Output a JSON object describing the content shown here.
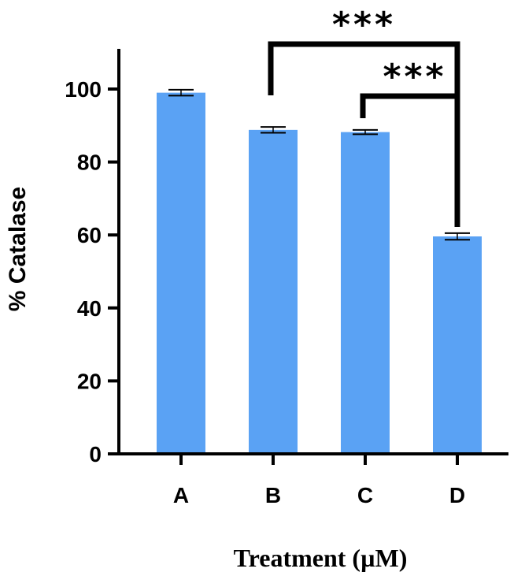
{
  "chart_data": {
    "type": "bar",
    "title": "",
    "xlabel": "Treatment (µM)",
    "ylabel": "% Catalase",
    "categories": [
      "A",
      "B",
      "C",
      "D"
    ],
    "values": [
      99.0,
      88.8,
      88.2,
      59.6
    ],
    "errors": [
      0.8,
      0.8,
      0.6,
      0.9
    ],
    "ylim": [
      0,
      110
    ],
    "yticks": [
      0,
      20,
      40,
      60,
      80,
      100
    ],
    "ytick_labels": [
      "0",
      "20",
      "40",
      "60",
      "80",
      "100"
    ],
    "grid": false,
    "bar_color": "#5aa2f4",
    "significance": [
      {
        "from": "B",
        "to": "D",
        "label": "***"
      },
      {
        "from": "C",
        "to": "D",
        "label": "***"
      }
    ]
  }
}
